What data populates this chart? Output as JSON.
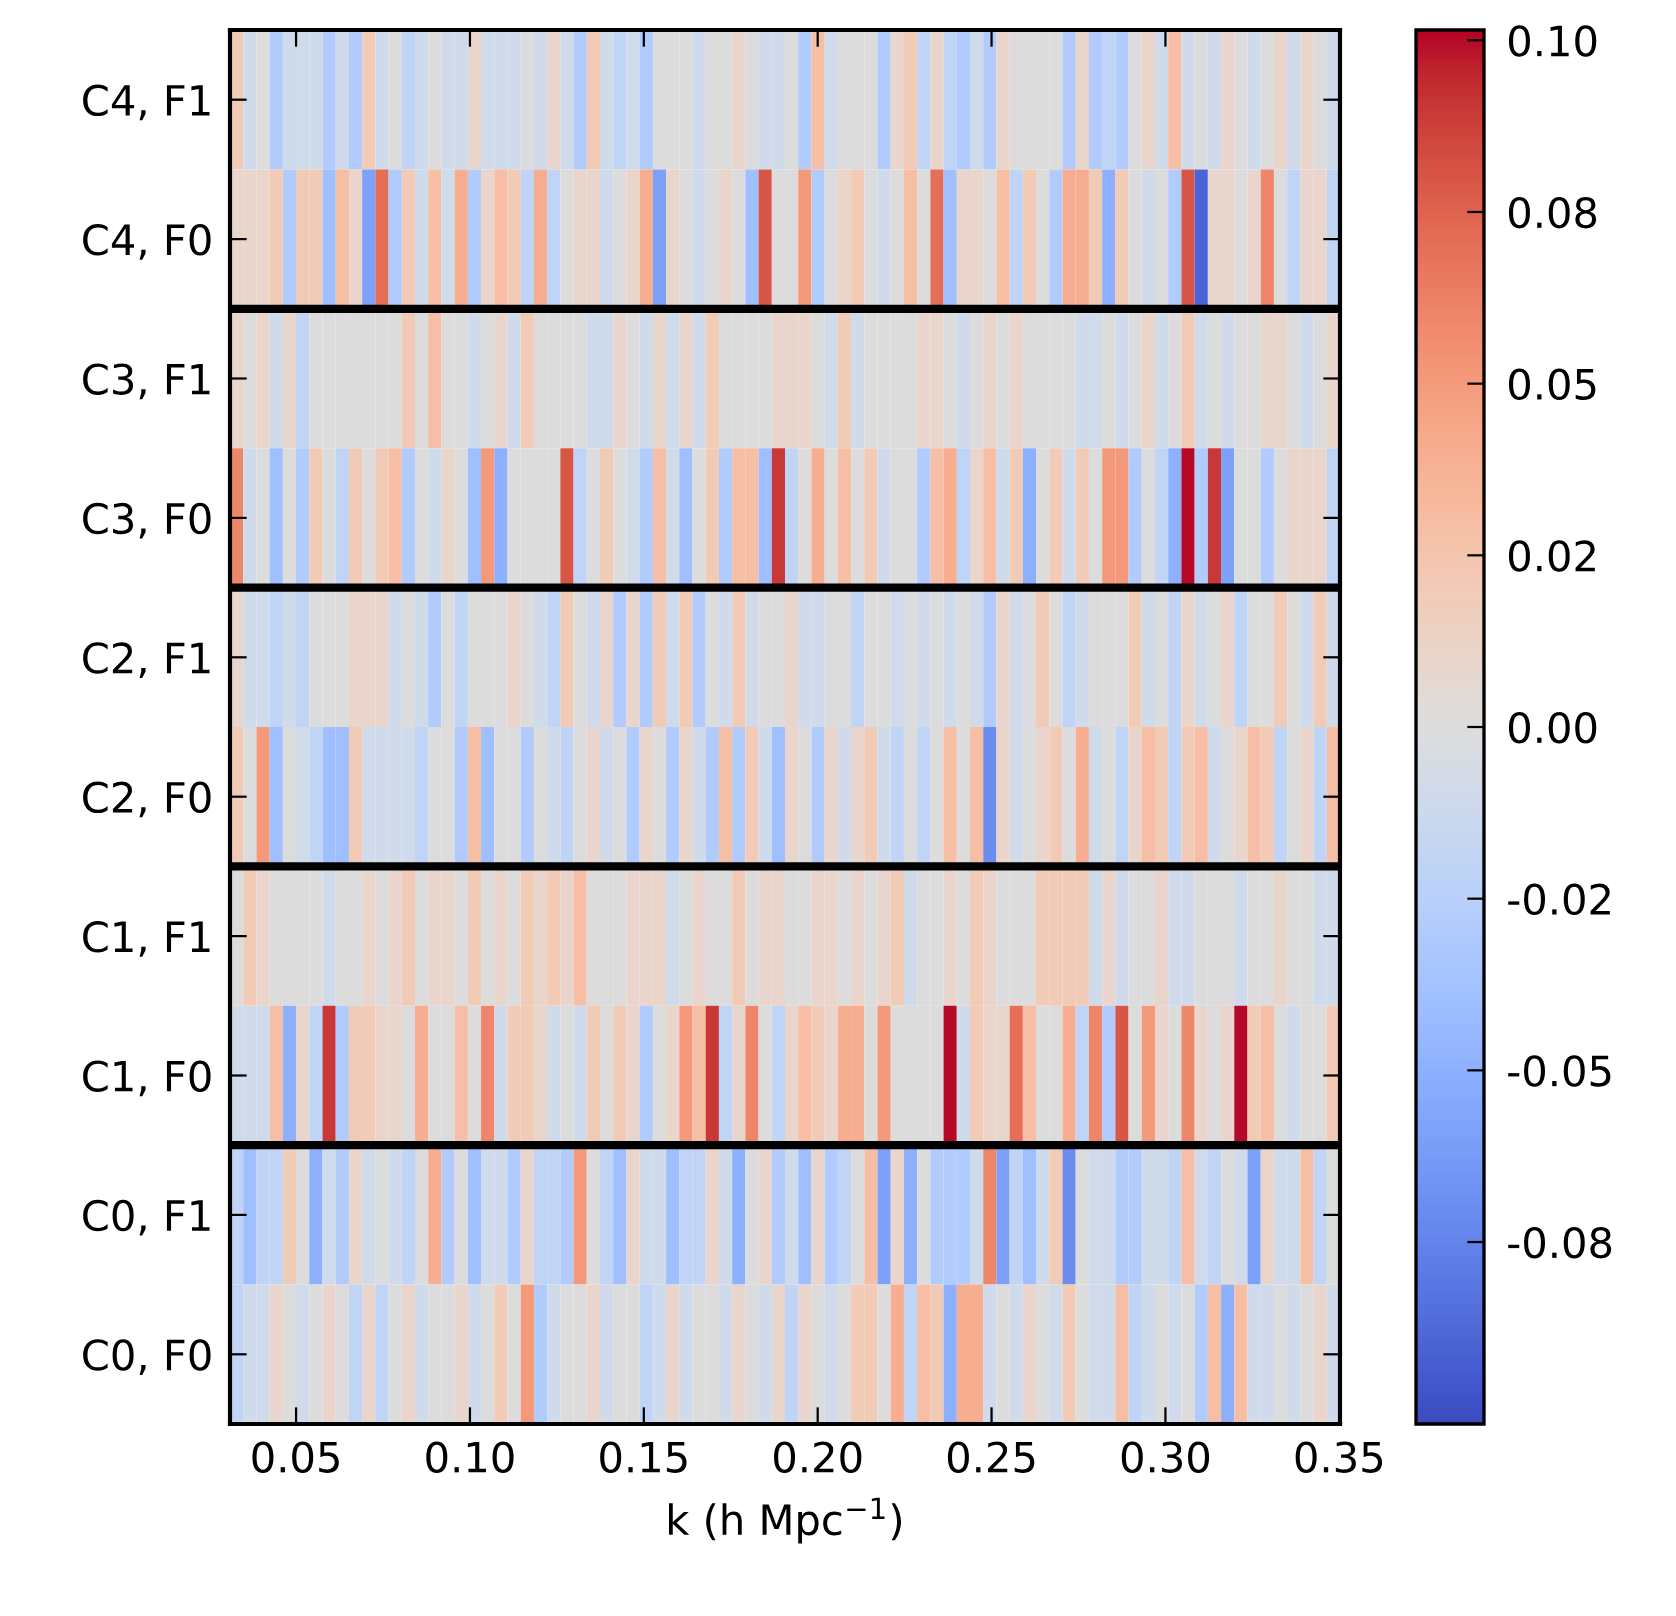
{
  "chart_data": {
    "type": "heatmap",
    "y_categories": [
      "C4, F1",
      "C4, F0",
      "C3, F1",
      "C3, F0",
      "C2, F1",
      "C2, F0",
      "C1, F1",
      "C1, F0",
      "C0, F1",
      "C0, F0"
    ],
    "xlim": [
      0.031,
      0.3502
    ],
    "clim": [
      -0.1015,
      0.1015
    ],
    "cticks": [
      {
        "value": -0.075,
        "label": "-0.08"
      },
      {
        "value": -0.05,
        "label": "-0.05"
      },
      {
        "value": -0.025,
        "label": "-0.02"
      },
      {
        "value": 0,
        "label": "0.00"
      },
      {
        "value": 0.025,
        "label": "0.02"
      },
      {
        "value": 0.05,
        "label": "0.05"
      },
      {
        "value": 0.075,
        "label": "0.08"
      },
      {
        "value": 0.1,
        "label": "0.10"
      }
    ],
    "xlabel": "k (h Mpc$^{−1}$)",
    "xticks": [
      {
        "value": 0.05,
        "label": "0.05"
      },
      {
        "value": 0.1,
        "label": "0.10"
      },
      {
        "value": 0.15,
        "label": "0.15"
      },
      {
        "value": 0.2,
        "label": "0.20"
      },
      {
        "value": 0.25,
        "label": "0.25"
      },
      {
        "value": 0.3,
        "label": "0.30"
      },
      {
        "value": 0.35,
        "label": "0.35"
      }
    ],
    "ref_lines": [
      {
        "axis": "y",
        "value": "C4, F0",
        "color": "#000000"
      },
      {
        "axis": "y",
        "value": "C3, F0",
        "color": "#000000"
      },
      {
        "axis": "y",
        "value": "C2, F0",
        "color": "#000000"
      },
      {
        "axis": "y",
        "value": "C1, F0",
        "color": "#000000"
      }
    ],
    "x": [
      0.0329,
      0.0367,
      0.0405,
      0.0443,
      0.0481,
      0.0519,
      0.0557,
      0.0595,
      0.0633,
      0.0671,
      0.0709,
      0.0747,
      0.0785,
      0.0823,
      0.0861,
      0.0899,
      0.0937,
      0.0975,
      0.1013,
      0.1051,
      0.1089,
      0.1127,
      0.1165,
      0.1203,
      0.1241,
      0.1279,
      0.1317,
      0.1355,
      0.1393,
      0.1431,
      0.1469,
      0.1507,
      0.1545,
      0.1583,
      0.1621,
      0.1659,
      0.1697,
      0.1735,
      0.1773,
      0.1811,
      0.1849,
      0.1887,
      0.1925,
      0.1963,
      0.2001,
      0.2039,
      0.2077,
      0.2115,
      0.2153,
      0.2191,
      0.2229,
      0.2267,
      0.2305,
      0.2343,
      0.2381,
      0.2419,
      0.2457,
      0.2495,
      0.2533,
      0.2571,
      0.2609,
      0.2647,
      0.2685,
      0.2723,
      0.2761,
      0.2799,
      0.2837,
      0.2875,
      0.2913,
      0.2951,
      0.2989,
      0.3027,
      0.3065,
      0.3103,
      0.3141,
      0.3179,
      0.3217,
      0.3255,
      0.3293,
      0.3331,
      0.3369,
      0.3407,
      0.3445,
      0.3483
    ],
    "cells": [
      [
        0.02,
        -0.01,
        0,
        -0.03,
        -0.01,
        -0.01,
        -0.01,
        -0.03,
        -0.01,
        -0.03,
        0.02,
        -0.01,
        0,
        -0.02,
        -0.01,
        0,
        -0.01,
        -0.01,
        0.01,
        -0.01,
        -0.01,
        -0.01,
        0,
        -0.01,
        0.01,
        -0.01,
        -0.03,
        0.02,
        -0.01,
        -0.02,
        -0.01,
        -0.03,
        0,
        0,
        0,
        -0.01,
        0,
        0,
        0.01,
        0,
        -0.01,
        -0.01,
        0,
        -0.03,
        0.03,
        -0.01,
        0,
        0,
        0,
        -0.03,
        0.01,
        0.02,
        -0.02,
        0.01,
        -0.02,
        -0.03,
        -0.01,
        -0.03,
        0.01,
        0,
        0,
        0,
        0,
        -0.03,
        0.01,
        -0.03,
        -0.02,
        -0.03,
        0,
        0.01,
        -0.01,
        0.03,
        -0.01,
        0,
        -0.01,
        0.01,
        0,
        -0.01,
        0,
        0.01,
        -0.01,
        0.01,
        0,
        -0.01
      ],
      [
        0.01,
        0.01,
        0.01,
        0.02,
        -0.03,
        0.02,
        0.02,
        -0.04,
        0.03,
        0.01,
        -0.06,
        0.07,
        -0.03,
        0.02,
        -0.01,
        0.03,
        -0.01,
        0.04,
        -0.03,
        0.01,
        0.03,
        0.02,
        -0.02,
        0.04,
        -0.02,
        0,
        0.01,
        0.01,
        -0.01,
        0,
        0.01,
        0.04,
        -0.06,
        0.01,
        0,
        -0.01,
        0,
        0.01,
        0,
        -0.04,
        0.08,
        0,
        0,
        0.05,
        -0.03,
        0,
        0.01,
        0.02,
        0,
        -0.01,
        0,
        0.03,
        0,
        0.07,
        -0.04,
        0.01,
        0.01,
        0,
        0.03,
        -0.02,
        0.02,
        0,
        -0.03,
        0.04,
        0.04,
        0.02,
        -0.05,
        0.02,
        0,
        -0.01,
        0,
        -0.03,
        0.08,
        -0.09,
        0.01,
        0.01,
        0,
        0.01,
        0.06,
        0,
        -0.02,
        0.01,
        0.01,
        -0.02
      ],
      [
        0.01,
        0,
        0.01,
        -0.01,
        0.01,
        -0.02,
        0,
        0,
        0,
        0,
        0,
        0,
        0,
        0.02,
        0,
        0.03,
        0,
        0,
        -0.01,
        0,
        0.01,
        -0.01,
        0.02,
        0,
        0,
        0,
        0,
        -0.01,
        -0.01,
        0.01,
        0,
        -0.01,
        0.01,
        -0.01,
        0.01,
        -0.01,
        0.02,
        0,
        0,
        0,
        0,
        0.01,
        0.01,
        0.01,
        0,
        -0.01,
        0.02,
        -0.01,
        0,
        0,
        0,
        0,
        0.01,
        0.01,
        0,
        -0.01,
        0,
        0.01,
        0,
        0.01,
        0,
        0,
        0,
        0,
        -0.01,
        -0.01,
        0,
        -0.01,
        0,
        0.01,
        -0.01,
        0,
        0.02,
        -0.01,
        0,
        -0.01,
        0,
        0,
        0.01,
        0.01,
        0,
        -0.01,
        0,
        0.01
      ],
      [
        0.06,
        -0.01,
        0,
        -0.04,
        0,
        -0.03,
        0.02,
        0,
        -0.02,
        0.02,
        0,
        0.02,
        0.03,
        -0.03,
        0,
        -0.01,
        0.01,
        0,
        -0.04,
        0.05,
        -0.05,
        0,
        0,
        0,
        0,
        0.08,
        -0.02,
        0,
        0.02,
        0,
        -0.01,
        -0.03,
        0.03,
        -0.01,
        -0.04,
        0,
        0.02,
        -0.03,
        0.03,
        0.03,
        -0.04,
        0.09,
        -0.02,
        0,
        0.04,
        0,
        0.03,
        0,
        0.02,
        -0.01,
        0,
        0,
        -0.03,
        0.03,
        0.04,
        -0.02,
        0.01,
        0.03,
        -0.01,
        0.02,
        -0.05,
        0,
        0.02,
        -0.01,
        0.02,
        0,
        0.05,
        0.05,
        -0.03,
        0,
        -0.02,
        -0.05,
        0.1,
        -0.03,
        0.09,
        -0.06,
        0,
        0,
        -0.03,
        0,
        0.01,
        0.01,
        0.01,
        -0.02
      ],
      [
        0.01,
        -0.01,
        -0.01,
        -0.02,
        -0.01,
        -0.02,
        0,
        0,
        0,
        0.01,
        0.01,
        0.01,
        -0.01,
        0,
        -0.01,
        -0.03,
        0,
        -0.02,
        0,
        0,
        0,
        0.01,
        0,
        -0.01,
        -0.02,
        0.02,
        0,
        -0.01,
        0.01,
        -0.03,
        0.01,
        -0.03,
        0.02,
        -0.01,
        0.02,
        -0.03,
        0,
        -0.01,
        0.02,
        -0.01,
        0,
        0,
        0.01,
        -0.01,
        -0.01,
        0,
        0,
        -0.02,
        0,
        0,
        -0.01,
        0,
        -0.01,
        0,
        -0.01,
        0,
        -0.01,
        -0.03,
        0.01,
        -0.01,
        0,
        0.02,
        0,
        -0.02,
        -0.01,
        0,
        0,
        0,
        0.02,
        -0.01,
        0,
        -0.02,
        0.01,
        -0.01,
        0,
        0.01,
        -0.02,
        0,
        0,
        0.02,
        0,
        -0.01,
        0.02,
        -0.01
      ],
      [
        0.02,
        0,
        0.05,
        -0.04,
        0,
        -0.01,
        -0.02,
        -0.04,
        -0.04,
        0.02,
        -0.01,
        -0.01,
        -0.01,
        -0.01,
        -0.02,
        0,
        0,
        -0.03,
        0.03,
        -0.04,
        0,
        0,
        -0.03,
        0,
        -0.01,
        -0.02,
        0,
        0.01,
        -0.01,
        0,
        -0.03,
        0.01,
        0,
        -0.03,
        0.01,
        -0.01,
        -0.03,
        0.03,
        -0.03,
        0.02,
        -0.01,
        -0.04,
        0.01,
        0,
        -0.03,
        0.01,
        -0.01,
        0.01,
        0.02,
        -0.01,
        -0.02,
        0,
        -0.02,
        0,
        0.03,
        0,
        0.03,
        -0.07,
        0.01,
        -0.01,
        0,
        0.01,
        0.02,
        0,
        0.04,
        -0.01,
        0,
        -0.02,
        0.01,
        0.03,
        0.02,
        -0.02,
        0.02,
        0.03,
        -0.01,
        0,
        0.01,
        0.03,
        0.02,
        -0.02,
        0,
        0.01,
        -0.02,
        0.03
      ],
      [
        0,
        0.02,
        0.01,
        0,
        0,
        0,
        0,
        -0.01,
        0,
        0,
        0.01,
        0,
        0.01,
        0.02,
        0,
        0.01,
        0.01,
        0,
        0.02,
        0,
        0.01,
        0,
        0.02,
        0.01,
        0.02,
        0.01,
        0.03,
        0,
        0,
        0,
        0.01,
        0.01,
        0.01,
        -0.01,
        0,
        0.01,
        0,
        0,
        0.02,
        0,
        0.01,
        0.01,
        0,
        0,
        0.01,
        0.01,
        0,
        0.01,
        0,
        0.01,
        0.02,
        -0.01,
        0,
        0,
        0.01,
        0,
        0.02,
        0.01,
        0,
        0,
        0,
        0.02,
        0.02,
        0.02,
        0.02,
        -0.01,
        0.01,
        -0.01,
        0,
        0,
        0.01,
        -0.01,
        -0.01,
        0,
        0,
        0,
        -0.01,
        0,
        0,
        0.01,
        0,
        0,
        -0.01,
        -0.01
      ],
      [
        -0.01,
        -0.01,
        -0.01,
        0.03,
        -0.05,
        0.01,
        -0.02,
        0.09,
        -0.03,
        0.02,
        0.02,
        0.01,
        0.01,
        0,
        0.04,
        0,
        0,
        0.03,
        0,
        0.06,
        -0.01,
        0.02,
        0.02,
        0.01,
        -0.01,
        0,
        -0.01,
        0.02,
        0,
        0.02,
        0.01,
        -0.03,
        0,
        0.01,
        0.05,
        0.03,
        0.09,
        -0.02,
        0.01,
        0.06,
        0,
        -0.02,
        0.01,
        0.03,
        0.02,
        0.01,
        0.04,
        0.04,
        0,
        0.05,
        0,
        0,
        0,
        0,
        0.1,
        -0.01,
        0.02,
        0.01,
        0.01,
        0.07,
        0.03,
        0,
        0,
        0.04,
        -0.02,
        0.06,
        -0.03,
        0.08,
        0,
        0.05,
        0.01,
        0,
        0.06,
        0.01,
        0,
        0.01,
        0.1,
        0.02,
        0.03,
        0,
        -0.01,
        0,
        0,
        0.02
      ],
      [
        -0.02,
        -0.04,
        -0.02,
        -0.02,
        0.02,
        0,
        -0.05,
        -0.01,
        -0.03,
        0.01,
        -0.01,
        0,
        -0.01,
        -0.02,
        0,
        0.04,
        -0.03,
        0,
        -0.04,
        -0.01,
        -0.01,
        -0.03,
        0.01,
        -0.02,
        -0.02,
        -0.03,
        0.05,
        0,
        -0.02,
        -0.04,
        0.01,
        -0.01,
        -0.01,
        -0.04,
        -0.02,
        -0.02,
        0.01,
        -0.01,
        -0.05,
        0,
        0.01,
        -0.03,
        -0.01,
        -0.04,
        0.01,
        -0.03,
        -0.02,
        0,
        0.03,
        -0.06,
        0.01,
        -0.05,
        0,
        -0.03,
        -0.03,
        -0.03,
        -0.01,
        0.06,
        -0.06,
        -0.02,
        -0.04,
        -0.01,
        0.02,
        -0.07,
        0,
        -0.01,
        -0.01,
        -0.03,
        -0.03,
        -0.01,
        -0.01,
        -0.02,
        0.03,
        -0.01,
        -0.02,
        0,
        -0.01,
        -0.06,
        0.01,
        -0.01,
        -0.01,
        0.03,
        -0.02,
        0
      ],
      [
        -0.02,
        -0.01,
        -0.01,
        0.01,
        0,
        -0.01,
        0,
        0.01,
        0,
        -0.02,
        0.01,
        -0.02,
        0,
        0.01,
        -0.01,
        0,
        0,
        0.01,
        -0.01,
        0,
        0.02,
        0,
        0.05,
        -0.03,
        -0.01,
        0,
        0,
        0.01,
        -0.01,
        0,
        0,
        -0.02,
        -0.01,
        0.01,
        -0.01,
        0,
        0,
        -0.01,
        0.01,
        0,
        -0.01,
        0.01,
        -0.02,
        0.01,
        0,
        -0.01,
        0,
        0.02,
        0.02,
        0,
        0.04,
        -0.02,
        0.03,
        0.02,
        -0.05,
        0.04,
        0.04,
        -0.01,
        0,
        -0.01,
        0.01,
        0,
        -0.01,
        0.02,
        0,
        -0.01,
        -0.01,
        0.03,
        -0.02,
        -0.01,
        0,
        -0.01,
        0,
        -0.03,
        0.03,
        -0.05,
        0.03,
        -0.01,
        -0.01,
        0,
        -0.01,
        0,
        0.01,
        -0.01
      ]
    ]
  }
}
